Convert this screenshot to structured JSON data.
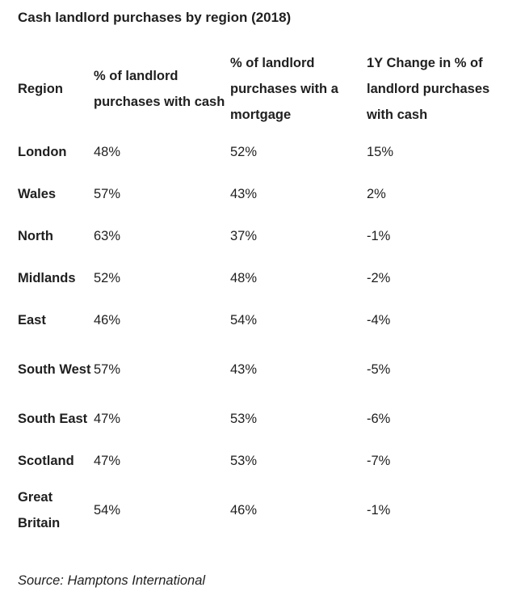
{
  "title": "Cash landlord purchases by region (2018)",
  "table": {
    "headers": [
      "Region",
      "% of landlord purchases with cash",
      "% of landlord purchases with a mortgage",
      "1Y Change in % of landlord purchases with cash"
    ],
    "rows": [
      {
        "region": "London",
        "cash": "48%",
        "mortgage": "52%",
        "change": "15%"
      },
      {
        "region": "Wales",
        "cash": "57%",
        "mortgage": "43%",
        "change": "2%"
      },
      {
        "region": "North",
        "cash": "63%",
        "mortgage": "37%",
        "change": "-1%"
      },
      {
        "region": "Midlands",
        "cash": "52%",
        "mortgage": "48%",
        "change": "-2%"
      },
      {
        "region": "East",
        "cash": "46%",
        "mortgage": "54%",
        "change": "-4%"
      },
      {
        "region": "South West",
        "cash": "57%",
        "mortgage": "43%",
        "change": "-5%"
      },
      {
        "region": "South East",
        "cash": "47%",
        "mortgage": "53%",
        "change": "-6%"
      },
      {
        "region": "Scotland",
        "cash": "47%",
        "mortgage": "53%",
        "change": "-7%"
      },
      {
        "region": "Great Britain",
        "cash": "54%",
        "mortgage": "46%",
        "change": "-1%"
      }
    ]
  },
  "source": "Source: Hamptons International"
}
